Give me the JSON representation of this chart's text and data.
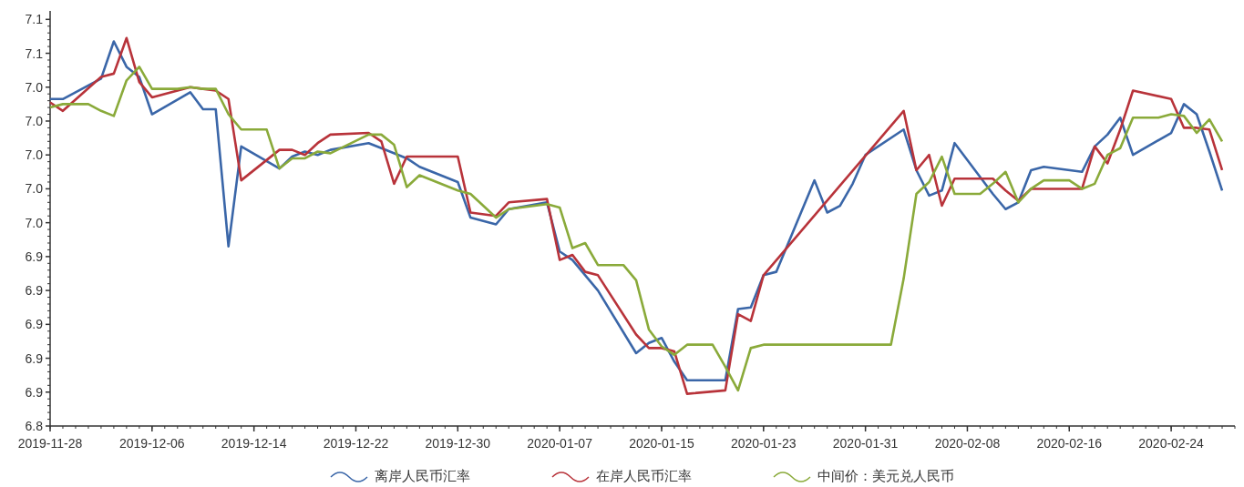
{
  "chart_data": {
    "type": "line",
    "legend": "bottom",
    "xlim": [
      "2019-11-28",
      "2020-02-29"
    ],
    "xticks": [
      "2019-11-28",
      "2019-12-06",
      "2019-12-14",
      "2019-12-22",
      "2019-12-30",
      "2020-01-07",
      "2020-01-15",
      "2020-01-23",
      "2020-01-31",
      "2020-02-08",
      "2020-02-16",
      "2020-02-24"
    ],
    "ylim": [
      6.84,
      7.085
    ],
    "yticks": [
      {
        "value": 6.84,
        "label": "6.8"
      },
      {
        "value": 6.86,
        "label": "6.9"
      },
      {
        "value": 6.88,
        "label": "6.9"
      },
      {
        "value": 6.9,
        "label": "6.9"
      },
      {
        "value": 6.92,
        "label": "6.9"
      },
      {
        "value": 6.94,
        "label": "6.9"
      },
      {
        "value": 6.96,
        "label": "7.0"
      },
      {
        "value": 6.98,
        "label": "7.0"
      },
      {
        "value": 7.0,
        "label": "7.0"
      },
      {
        "value": 7.02,
        "label": "7.0"
      },
      {
        "value": 7.04,
        "label": "7.0"
      },
      {
        "value": 7.06,
        "label": "7.1"
      },
      {
        "value": 7.08,
        "label": "7.1"
      }
    ],
    "series": [
      {
        "name": "离岸人民币汇率",
        "color": "#3a66a8",
        "x": [
          "2019-11-28",
          "2019-11-29",
          "2019-12-02",
          "2019-12-03",
          "2019-12-04",
          "2019-12-05",
          "2019-12-06",
          "2019-12-09",
          "2019-12-10",
          "2019-12-11",
          "2019-12-12",
          "2019-12-13",
          "2019-12-16",
          "2019-12-17",
          "2019-12-18",
          "2019-12-19",
          "2019-12-20",
          "2019-12-23",
          "2019-12-24",
          "2019-12-26",
          "2019-12-27",
          "2019-12-30",
          "2019-12-31",
          "2020-01-02",
          "2020-01-03",
          "2020-01-06",
          "2020-01-07",
          "2020-01-08",
          "2020-01-09",
          "2020-01-10",
          "2020-01-13",
          "2020-01-14",
          "2020-01-15",
          "2020-01-16",
          "2020-01-17",
          "2020-01-20",
          "2020-01-21",
          "2020-01-22",
          "2020-01-23",
          "2020-01-24",
          "2020-01-27",
          "2020-01-28",
          "2020-01-29",
          "2020-01-30",
          "2020-01-31",
          "2020-02-03",
          "2020-02-04",
          "2020-02-05",
          "2020-02-06",
          "2020-02-07",
          "2020-02-10",
          "2020-02-11",
          "2020-02-12",
          "2020-02-13",
          "2020-02-14",
          "2020-02-17",
          "2020-02-18",
          "2020-02-19",
          "2020-02-20",
          "2020-02-21",
          "2020-02-24",
          "2020-02-25",
          "2020-02-26",
          "2020-02-27",
          "2020-02-28"
        ],
        "values": [
          7.033,
          7.033,
          7.045,
          7.067,
          7.052,
          7.046,
          7.024,
          7.037,
          7.027,
          7.027,
          6.946,
          7.005,
          6.992,
          6.999,
          7.002,
          7.0,
          7.003,
          7.007,
          7.004,
          6.998,
          6.993,
          6.984,
          6.963,
          6.959,
          6.968,
          6.972,
          6.943,
          6.938,
          6.929,
          6.92,
          6.883,
          6.889,
          6.892,
          6.878,
          6.867,
          6.867,
          6.909,
          6.91,
          6.929,
          6.931,
          6.985,
          6.966,
          6.97,
          6.983,
          7.0,
          7.015,
          6.991,
          6.976,
          6.979,
          7.007,
          6.977,
          6.968,
          6.972,
          6.991,
          6.993,
          6.99,
          7.005,
          7.012,
          7.022,
          7.0,
          7.013,
          7.03,
          7.024,
          7.002,
          6.979
        ]
      },
      {
        "name": "在岸人民币汇率",
        "color": "#b8333a",
        "x": [
          "2019-11-28",
          "2019-11-29",
          "2019-12-02",
          "2019-12-03",
          "2019-12-04",
          "2019-12-05",
          "2019-12-06",
          "2019-12-09",
          "2019-12-10",
          "2019-12-11",
          "2019-12-12",
          "2019-12-13",
          "2019-12-16",
          "2019-12-17",
          "2019-12-18",
          "2019-12-19",
          "2019-12-20",
          "2019-12-23",
          "2019-12-24",
          "2019-12-25",
          "2019-12-26",
          "2019-12-27",
          "2019-12-30",
          "2019-12-31",
          "2020-01-02",
          "2020-01-03",
          "2020-01-06",
          "2020-01-07",
          "2020-01-08",
          "2020-01-09",
          "2020-01-10",
          "2020-01-13",
          "2020-01-14",
          "2020-01-15",
          "2020-01-16",
          "2020-01-17",
          "2020-01-20",
          "2020-01-21",
          "2020-01-22",
          "2020-01-23",
          "2020-02-03",
          "2020-02-04",
          "2020-02-05",
          "2020-02-06",
          "2020-02-07",
          "2020-02-10",
          "2020-02-11",
          "2020-02-12",
          "2020-02-13",
          "2020-02-14",
          "2020-02-17",
          "2020-02-18",
          "2020-02-19",
          "2020-02-20",
          "2020-02-21",
          "2020-02-24",
          "2020-02-25",
          "2020-02-26",
          "2020-02-27",
          "2020-02-28"
        ],
        "values": [
          7.031,
          7.026,
          7.046,
          7.048,
          7.069,
          7.043,
          7.034,
          7.04,
          7.039,
          7.038,
          7.033,
          6.985,
          7.003,
          7.003,
          7.0,
          7.007,
          7.012,
          7.013,
          7.008,
          6.983,
          6.999,
          6.999,
          6.999,
          6.966,
          6.964,
          6.972,
          6.974,
          6.938,
          6.941,
          6.931,
          6.929,
          6.894,
          6.886,
          6.886,
          6.884,
          6.859,
          6.861,
          6.906,
          6.902,
          6.929,
          7.026,
          6.991,
          7.0,
          6.97,
          6.986,
          6.986,
          6.979,
          6.973,
          6.98,
          6.98,
          6.98,
          7.005,
          6.995,
          7.015,
          7.038,
          7.033,
          7.016,
          7.016,
          7.015,
          6.991
        ]
      },
      {
        "name": "中间价：美元兑人民币",
        "color": "#8aaa3a",
        "x": [
          "2019-11-28",
          "2019-11-29",
          "2019-11-30",
          "2019-12-01",
          "2019-12-02",
          "2019-12-03",
          "2019-12-04",
          "2019-12-05",
          "2019-12-06",
          "2019-12-07",
          "2019-12-08",
          "2019-12-09",
          "2019-12-10",
          "2019-12-11",
          "2019-12-12",
          "2019-12-13",
          "2019-12-14",
          "2019-12-15",
          "2019-12-16",
          "2019-12-17",
          "2019-12-18",
          "2019-12-19",
          "2019-12-20",
          "2019-12-23",
          "2019-12-24",
          "2019-12-25",
          "2019-12-26",
          "2019-12-27",
          "2019-12-30",
          "2019-12-31",
          "2020-01-02",
          "2020-01-03",
          "2020-01-06",
          "2020-01-07",
          "2020-01-08",
          "2020-01-09",
          "2020-01-10",
          "2020-01-11",
          "2020-01-12",
          "2020-01-13",
          "2020-01-14",
          "2020-01-15",
          "2020-01-16",
          "2020-01-17",
          "2020-01-18",
          "2020-01-19",
          "2020-01-20",
          "2020-01-21",
          "2020-01-22",
          "2020-01-23",
          "2020-02-02",
          "2020-02-03",
          "2020-02-04",
          "2020-02-05",
          "2020-02-06",
          "2020-02-07",
          "2020-02-08",
          "2020-02-09",
          "2020-02-10",
          "2020-02-11",
          "2020-02-12",
          "2020-02-13",
          "2020-02-14",
          "2020-02-15",
          "2020-02-16",
          "2020-02-17",
          "2020-02-18",
          "2020-02-19",
          "2020-02-20",
          "2020-02-21",
          "2020-02-22",
          "2020-02-23",
          "2020-02-24",
          "2020-02-25",
          "2020-02-26",
          "2020-02-27",
          "2020-02-28"
        ],
        "values": [
          7.028,
          7.03,
          7.03,
          7.03,
          7.026,
          7.023,
          7.044,
          7.052,
          7.039,
          7.039,
          7.039,
          7.04,
          7.039,
          7.039,
          7.024,
          7.015,
          7.015,
          7.015,
          6.992,
          6.998,
          6.998,
          7.002,
          7.001,
          7.012,
          7.012,
          7.006,
          6.981,
          6.988,
          6.979,
          6.977,
          6.963,
          6.968,
          6.971,
          6.969,
          6.945,
          6.948,
          6.935,
          6.935,
          6.935,
          6.926,
          6.897,
          6.887,
          6.882,
          6.888,
          6.888,
          6.888,
          6.875,
          6.861,
          6.886,
          6.888,
          6.888,
          6.927,
          6.977,
          6.984,
          6.999,
          6.977,
          6.977,
          6.977,
          6.983,
          6.99,
          6.972,
          6.98,
          6.985,
          6.985,
          6.985,
          6.98,
          6.983,
          7.0,
          7.004,
          7.022,
          7.022,
          7.022,
          7.024,
          7.023,
          7.013,
          7.021,
          7.008
        ]
      }
    ]
  }
}
